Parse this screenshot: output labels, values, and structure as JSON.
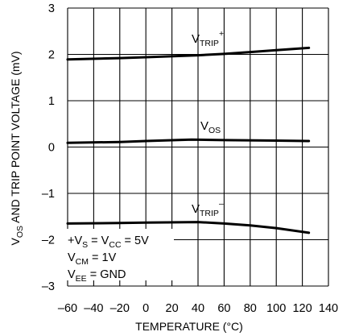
{
  "chart_data": {
    "type": "line",
    "xlabel": "TEMPERATURE (°C)",
    "ylabel": "VOS AND TRIP POINT VOLTAGE (mV)",
    "ylabel_parts": {
      "a": "V",
      "a_sub": "OS",
      "b": " AND TRIP POINT VOLTAGE (mV)"
    },
    "xlim": [
      -60,
      140
    ],
    "ylim": [
      -3,
      3
    ],
    "x_ticks": [
      -60,
      -40,
      -20,
      0,
      20,
      40,
      60,
      80,
      100,
      120,
      140
    ],
    "x_tick_labels": [
      "–60",
      "–40",
      "–20",
      "0",
      "20",
      "40",
      "60",
      "80",
      "100",
      "120",
      "140"
    ],
    "y_ticks": [
      3,
      2,
      1,
      0,
      -1,
      -2,
      -3
    ],
    "y_tick_labels": [
      "3",
      "2",
      "1",
      "0",
      "–1",
      "–2",
      "–3"
    ],
    "grid": true,
    "series": [
      {
        "name": "VTRIP+",
        "label_parts": {
          "main": "V",
          "sub": "TRIP",
          "sup": "+"
        },
        "points": [
          [
            -60,
            1.89
          ],
          [
            -20,
            1.92
          ],
          [
            0,
            1.94
          ],
          [
            40,
            1.98
          ],
          [
            60,
            2.01
          ],
          [
            80,
            2.05
          ],
          [
            100,
            2.09
          ],
          [
            125,
            2.14
          ]
        ]
      },
      {
        "name": "VOS",
        "label_parts": {
          "main": "V",
          "sub": "OS",
          "sup": ""
        },
        "points": [
          [
            -60,
            0.09
          ],
          [
            -20,
            0.11
          ],
          [
            0,
            0.13
          ],
          [
            35,
            0.16
          ],
          [
            60,
            0.15
          ],
          [
            100,
            0.14
          ],
          [
            125,
            0.13
          ]
        ]
      },
      {
        "name": "VTRIP–",
        "label_parts": {
          "main": "V",
          "sub": "TRIP",
          "sup": "–"
        },
        "points": [
          [
            -60,
            -1.65
          ],
          [
            -20,
            -1.64
          ],
          [
            0,
            -1.63
          ],
          [
            40,
            -1.62
          ],
          [
            60,
            -1.65
          ],
          [
            80,
            -1.69
          ],
          [
            100,
            -1.75
          ],
          [
            125,
            -1.85
          ]
        ]
      }
    ],
    "annotations": {
      "line1": {
        "a": "+V",
        "a_sub": "S",
        "b": " = V",
        "b_sub": "CC",
        "c": " = 5V"
      },
      "line2": {
        "a": "V",
        "a_sub": "CM",
        "b": " = 1V"
      },
      "line3": {
        "a": "V",
        "a_sub": "EE",
        "b": " = GND"
      }
    }
  }
}
